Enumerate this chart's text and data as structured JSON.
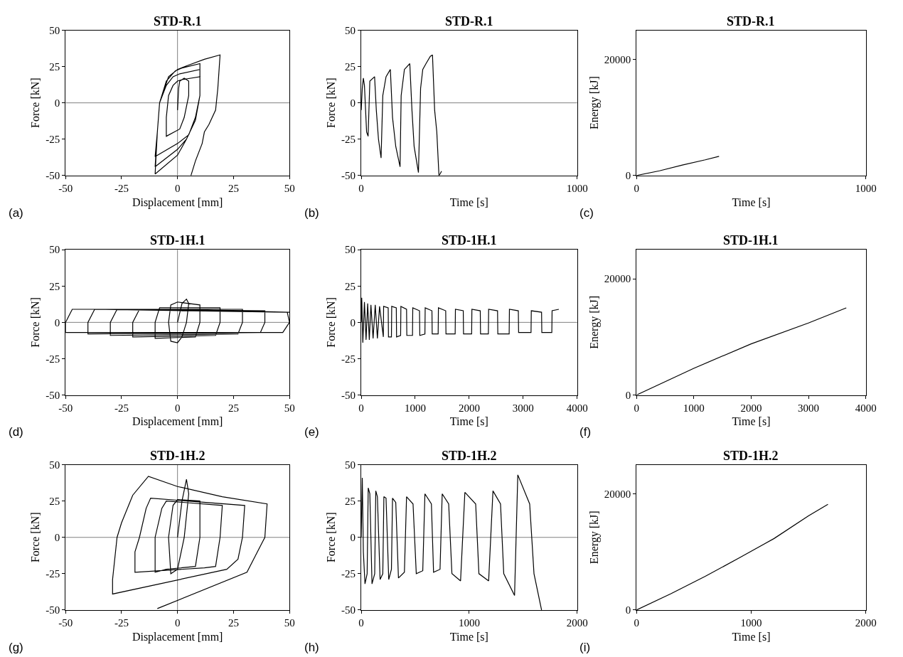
{
  "chart_data": [
    {
      "type": "line",
      "title": "STD-R.1",
      "xlabel": "Displacement [mm]",
      "ylabel": "Force [kN]",
      "annotations": [
        "(a)"
      ],
      "xlim": [
        -50,
        50
      ],
      "ylim": [
        -50,
        50
      ],
      "xticks": [
        -50,
        -25,
        0,
        25,
        50
      ],
      "yticks": [
        -50,
        -25,
        0,
        25,
        50
      ],
      "ref_lines": [
        {
          "axis": "x",
          "value": 0,
          "color": "#808080"
        },
        {
          "axis": "y",
          "value": 0,
          "color": "#808080"
        }
      ],
      "series": [
        {
          "color": "#000000",
          "x": [
            0,
            0.5,
            1,
            3,
            5,
            5,
            3,
            1,
            -5,
            -5,
            -4,
            -2,
            0,
            2,
            10,
            10,
            8,
            5,
            0,
            -10,
            -9,
            -8,
            -5,
            -2,
            1,
            10,
            10,
            8,
            4,
            0,
            -10,
            -9,
            -8,
            -5,
            -1,
            2,
            10,
            10,
            8,
            4,
            0,
            -10,
            -9,
            -8,
            -4,
            0,
            5,
            12,
            19,
            18,
            17,
            14,
            12,
            11,
            8,
            6
          ],
          "values": [
            -5,
            10,
            15,
            17,
            15,
            5,
            -10,
            -18,
            -23,
            -10,
            5,
            12,
            15,
            16,
            18,
            5,
            -10,
            -22,
            -28,
            -37,
            -20,
            0,
            12,
            18,
            20,
            23,
            5,
            -12,
            -25,
            -32,
            -44,
            -20,
            0,
            15,
            22,
            24,
            27,
            5,
            -12,
            -25,
            -36,
            -49,
            -20,
            0,
            18,
            23,
            26,
            30,
            33,
            10,
            -5,
            -15,
            -20,
            -28,
            -40,
            -50
          ]
        }
      ]
    },
    {
      "type": "line",
      "title": "STD-R.1",
      "xlabel": "Time [s]",
      "ylabel": "Force [kN]",
      "annotations": [
        "(b)"
      ],
      "xlim": [
        0,
        1000
      ],
      "ylim": [
        -50,
        50
      ],
      "xticks": [
        0,
        1000
      ],
      "yticks": [
        -50,
        -25,
        0,
        25,
        50
      ],
      "ref_lines": [
        {
          "axis": "y",
          "value": 0,
          "color": "#808080"
        }
      ],
      "series": [
        {
          "color": "#000000",
          "x": [
            0,
            5,
            10,
            15,
            25,
            32,
            40,
            62,
            70,
            80,
            92,
            100,
            115,
            135,
            145,
            160,
            180,
            185,
            200,
            225,
            235,
            245,
            265,
            275,
            285,
            300,
            320,
            330,
            340,
            350,
            360,
            365,
            372
          ],
          "values": [
            -5,
            10,
            17,
            12,
            -20,
            -23,
            15,
            18,
            -5,
            -25,
            -38,
            5,
            18,
            23,
            -10,
            -30,
            -44,
            5,
            23,
            27,
            -5,
            -30,
            -48,
            10,
            23,
            27,
            32,
            33,
            -5,
            -20,
            -50,
            -49,
            -47
          ]
        }
      ]
    },
    {
      "type": "line",
      "title": "STD-R.1",
      "xlabel": "Time [s]",
      "ylabel": "Energy [kJ]",
      "annotations": [
        "(c)"
      ],
      "xlim": [
        0,
        1000
      ],
      "ylim": [
        0,
        25000
      ],
      "xticks": [
        0,
        1000
      ],
      "yticks": [
        0,
        20000
      ],
      "series": [
        {
          "color": "#000000",
          "x": [
            0,
            100,
            200,
            300,
            360
          ],
          "values": [
            0,
            800,
            1800,
            2700,
            3300
          ]
        }
      ]
    },
    {
      "type": "line",
      "title": "STD-1H.1",
      "xlabel": "Displacement [mm]",
      "ylabel": "Force [kN]",
      "annotations": [
        "(d)"
      ],
      "xlim": [
        -50,
        50
      ],
      "ylim": [
        -50,
        50
      ],
      "xticks": [
        -50,
        -25,
        0,
        25,
        50
      ],
      "yticks": [
        -50,
        -25,
        0,
        25,
        50
      ],
      "ref_lines": [
        {
          "axis": "x",
          "value": 0,
          "color": "#808080"
        },
        {
          "axis": "y",
          "value": 0,
          "color": "#808080"
        }
      ],
      "series": [
        {
          "color": "#000000",
          "x": [
            0,
            2,
            4,
            5,
            4,
            2,
            0,
            -3,
            -4,
            -3,
            0,
            10,
            10,
            8,
            -10,
            -10,
            -8,
            19,
            19,
            17,
            -20,
            -20,
            -17,
            29,
            29,
            27,
            -30,
            -30,
            -27,
            39,
            39,
            37,
            -40,
            -40,
            -37,
            49,
            50,
            47,
            -50,
            -50,
            -47,
            0,
            49,
            50
          ],
          "values": [
            0,
            13,
            16,
            13,
            0,
            -10,
            -14,
            -13,
            0,
            12,
            14,
            12,
            0,
            -10,
            -11,
            0,
            10,
            10,
            0,
            -9,
            -10,
            0,
            9,
            9,
            0,
            -8,
            -9,
            0,
            9,
            8,
            0,
            -7,
            -8,
            0,
            9,
            7,
            0,
            -7,
            -7,
            0,
            9,
            9,
            7,
            7
          ]
        }
      ]
    },
    {
      "type": "line",
      "title": "STD-1H.1",
      "xlabel": "Time [s]",
      "ylabel": "Force [kN]",
      "annotations": [
        "(e)"
      ],
      "xlim": [
        0,
        4000
      ],
      "ylim": [
        -50,
        50
      ],
      "xticks": [
        0,
        1000,
        2000,
        3000,
        4000
      ],
      "yticks": [
        -50,
        -25,
        0,
        25,
        50
      ],
      "ref_lines": [
        {
          "axis": "y",
          "value": 0,
          "color": "#808080"
        }
      ],
      "series": [
        {
          "color": "#000000",
          "x": [
            0,
            10,
            30,
            60,
            90,
            120,
            150,
            180,
            220,
            260,
            300,
            340,
            410,
            415,
            500,
            505,
            560,
            565,
            650,
            655,
            730,
            735,
            840,
            845,
            950,
            955,
            1080,
            1085,
            1180,
            1185,
            1310,
            1315,
            1425,
            1430,
            1565,
            1570,
            1740,
            1745,
            1890,
            1895,
            2045,
            2050,
            2205,
            2210,
            2355,
            2360,
            2525,
            2530,
            2740,
            2745,
            2910,
            2915,
            3145,
            3150,
            3340,
            3345,
            3530,
            3535,
            3660
          ],
          "values": [
            0,
            17,
            -14,
            14,
            -12,
            13,
            -12,
            12,
            -11,
            12,
            -11,
            11,
            -10,
            11,
            10,
            -10,
            -10,
            11,
            10,
            -10,
            -9,
            11,
            9,
            -9,
            -9,
            10,
            8,
            -9,
            -8,
            10,
            8,
            -8,
            -8,
            10,
            8,
            -8,
            -8,
            9,
            8,
            -8,
            -8,
            9,
            8,
            -8,
            -8,
            9,
            8,
            -8,
            -8,
            9,
            8,
            -7,
            -7,
            8,
            7,
            -7,
            -7,
            8,
            9
          ]
        }
      ]
    },
    {
      "type": "line",
      "title": "STD-1H.1",
      "xlabel": "Time [s]",
      "ylabel": "Energy [kJ]",
      "annotations": [
        "(f)"
      ],
      "xlim": [
        0,
        4000
      ],
      "ylim": [
        0,
        25000
      ],
      "xticks": [
        0,
        1000,
        2000,
        3000,
        4000
      ],
      "yticks": [
        0,
        20000
      ],
      "series": [
        {
          "color": "#000000",
          "x": [
            0,
            1000,
            2000,
            3000,
            3660
          ],
          "values": [
            0,
            4600,
            8800,
            12400,
            15000
          ]
        }
      ]
    },
    {
      "type": "line",
      "title": "STD-1H.2",
      "xlabel": "Displacement [mm]",
      "ylabel": "Force [kN]",
      "annotations": [
        "(g)"
      ],
      "xlim": [
        -50,
        50
      ],
      "ylim": [
        -50,
        50
      ],
      "xticks": [
        -50,
        -25,
        0,
        25,
        50
      ],
      "yticks": [
        -50,
        -25,
        0,
        25,
        50
      ],
      "ref_lines": [
        {
          "axis": "x",
          "value": 0,
          "color": "#808080"
        },
        {
          "axis": "y",
          "value": 0,
          "color": "#808080"
        }
      ],
      "series": [
        {
          "color": "#000000",
          "x": [
            0,
            2,
            4,
            5,
            3,
            0,
            -3,
            -4,
            -2,
            0,
            10,
            10,
            8,
            -5,
            -10,
            -10,
            -7,
            -5,
            20,
            19,
            17,
            12,
            -19,
            -19,
            -17,
            -14,
            -12,
            30,
            29,
            27,
            22,
            -29,
            -29,
            -27,
            -25,
            -20,
            -13,
            0,
            20,
            40,
            39,
            35,
            31,
            -9
          ],
          "values": [
            0,
            25,
            40,
            30,
            0,
            -22,
            -25,
            0,
            22,
            26,
            25,
            0,
            -20,
            -22,
            -24,
            0,
            20,
            25,
            22,
            0,
            -20,
            -21,
            -24,
            -10,
            0,
            20,
            27,
            22,
            0,
            -15,
            -22,
            -39,
            -29,
            0,
            10,
            29,
            42,
            35,
            28,
            23,
            0,
            -12,
            -24,
            -49
          ]
        }
      ]
    },
    {
      "type": "line",
      "title": "STD-1H.2",
      "xlabel": "Time [s]",
      "ylabel": "Force [kN]",
      "annotations": [
        "(h)"
      ],
      "xlim": [
        0,
        2000
      ],
      "ylim": [
        -50,
        50
      ],
      "xticks": [
        0,
        1000,
        2000
      ],
      "yticks": [
        -50,
        -25,
        0,
        25,
        50
      ],
      "ref_lines": [
        {
          "axis": "y",
          "value": 0,
          "color": "#808080"
        }
      ],
      "series": [
        {
          "color": "#000000",
          "x": [
            0,
            10,
            20,
            35,
            55,
            65,
            80,
            100,
            125,
            135,
            150,
            175,
            200,
            210,
            230,
            255,
            280,
            290,
            320,
            345,
            400,
            420,
            480,
            510,
            570,
            590,
            650,
            670,
            730,
            750,
            810,
            840,
            920,
            960,
            1060,
            1090,
            1180,
            1220,
            1290,
            1320,
            1420,
            1450,
            1560,
            1600,
            1670
          ],
          "values": [
            0,
            41,
            -10,
            -32,
            -25,
            34,
            30,
            -32,
            -25,
            32,
            28,
            -29,
            -25,
            28,
            27,
            -29,
            -22,
            27,
            24,
            -28,
            -24,
            28,
            23,
            -25,
            -23,
            30,
            23,
            -24,
            -22,
            30,
            23,
            -25,
            -30,
            31,
            23,
            -25,
            -30,
            32,
            23,
            -25,
            -40,
            43,
            23,
            -25,
            -50
          ]
        }
      ]
    },
    {
      "type": "line",
      "title": "STD-1H.2",
      "xlabel": "Time [s]",
      "ylabel": "Energy [kJ]",
      "annotations": [
        "(i)"
      ],
      "xlim": [
        0,
        2000
      ],
      "ylim": [
        0,
        25000
      ],
      "xticks": [
        0,
        1000,
        2000
      ],
      "yticks": [
        0,
        20000
      ],
      "series": [
        {
          "color": "#000000",
          "x": [
            0,
            300,
            600,
            900,
            1200,
            1500,
            1670
          ],
          "values": [
            0,
            2800,
            5800,
            9000,
            12300,
            16200,
            18200
          ]
        }
      ]
    }
  ]
}
